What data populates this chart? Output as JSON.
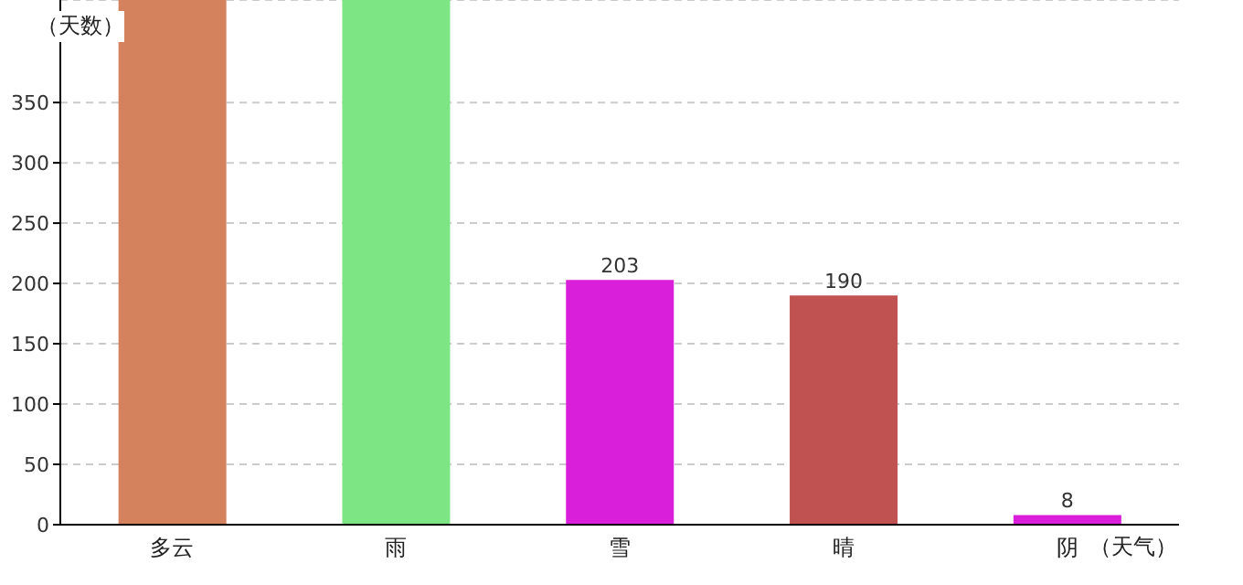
{
  "chart_data": {
    "type": "bar",
    "xlabel": "（天气）",
    "ylabel": "（天数）",
    "categories": [
      "多云",
      "雨",
      "雪",
      "晴",
      "阴"
    ],
    "values": [
      435,
      435,
      203,
      190,
      8
    ],
    "colors": [
      "#d4825e",
      "#7ee584",
      "#da1fda",
      "#c05252",
      "#da1fda"
    ],
    "value_labels": [
      null,
      null,
      "203",
      "190",
      "8"
    ],
    "ylim": [
      0,
      435
    ],
    "yticks": [
      0,
      50,
      100,
      150,
      200,
      250,
      300,
      350
    ],
    "grid": "y"
  }
}
